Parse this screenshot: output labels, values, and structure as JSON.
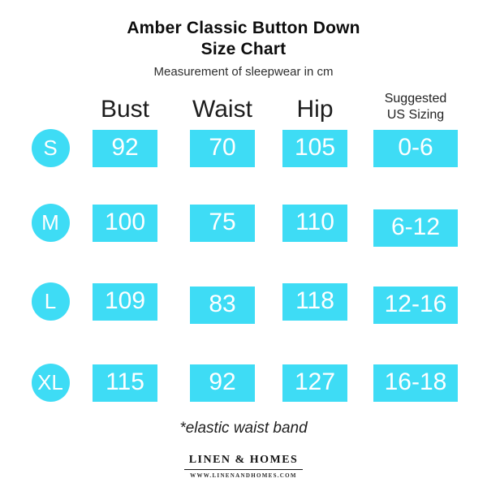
{
  "colors": {
    "accent": "#3edcf5",
    "title_text": "#0d0d0d",
    "value_text": "#ffffff"
  },
  "header": {
    "title": "Amber Classic Button Down\nSize Chart",
    "subtitle": "Measurement of sleepwear in cm"
  },
  "table": {
    "columns": [
      "Bust",
      "Waist",
      "Hip",
      "Suggested US Sizing"
    ],
    "rows": [
      {
        "size": "S",
        "bust": "92",
        "waist": "70",
        "hip": "105",
        "us": "0-6"
      },
      {
        "size": "M",
        "bust": "100",
        "waist": "75",
        "hip": "110",
        "us": "6-12"
      },
      {
        "size": "L",
        "bust": "109",
        "waist": "83",
        "hip": "118",
        "us": "12-16"
      },
      {
        "size": "XL",
        "bust": "115",
        "waist": "92",
        "hip": "127",
        "us": "16-18"
      }
    ]
  },
  "footnote": "*elastic waist band",
  "logo": {
    "name": "LINEN & HOMES",
    "url": "WWW.LINENANDHOMES.COM"
  }
}
